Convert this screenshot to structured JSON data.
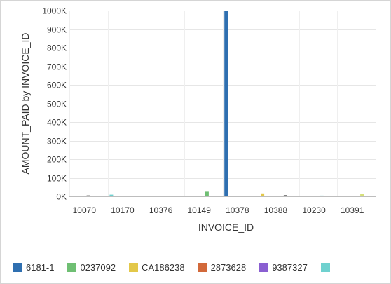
{
  "chart_data": {
    "type": "bar",
    "xlabel": "INVOICE_ID",
    "ylabel": "AMOUNT_PAID by INVOICE_ID",
    "ylim": [
      0,
      1000000
    ],
    "yticks": [
      0,
      100000,
      200000,
      300000,
      400000,
      500000,
      600000,
      700000,
      800000,
      900000,
      1000000
    ],
    "ytick_labels": [
      "0K",
      "100K",
      "200K",
      "300K",
      "400K",
      "500K",
      "600K",
      "700K",
      "800K",
      "900K",
      "1000K"
    ],
    "categories": [
      "10070",
      "10170",
      "10376",
      "10149",
      "10378",
      "10388",
      "10230",
      "10391"
    ],
    "grid": true,
    "legend_position": "bottom",
    "series": [
      {
        "name": "6181-1",
        "color": "#2f6fb0"
      },
      {
        "name": "0237092",
        "color": "#6fbf73"
      },
      {
        "name": "CA186238",
        "color": "#e3c84a"
      },
      {
        "name": "2873628",
        "color": "#d2693a"
      },
      {
        "name": "9387327",
        "color": "#8a5fd1"
      },
      {
        "name": "",
        "color": "#6fd1cf"
      }
    ],
    "bars": [
      {
        "category_index": 0,
        "slot": 0.45,
        "value": 5000,
        "color": "#333333"
      },
      {
        "category_index": 1,
        "slot": 0.05,
        "value": 9000,
        "color": "#6fd1cf"
      },
      {
        "category_index": 3,
        "slot": 0.55,
        "value": 25000,
        "color": "#6fbf73"
      },
      {
        "category_index": 4,
        "slot": 0.05,
        "value": 1000000,
        "color": "#2f6fb0"
      },
      {
        "category_index": 5,
        "slot": 0.0,
        "value": 16000,
        "color": "#e3c84a"
      },
      {
        "category_index": 5,
        "slot": 0.6,
        "value": 6000,
        "color": "#333333"
      },
      {
        "category_index": 6,
        "slot": 0.55,
        "value": 4000,
        "color": "#6fd1cf"
      },
      {
        "category_index": 7,
        "slot": 0.6,
        "value": 15000,
        "color": "#d6e07a"
      }
    ]
  }
}
